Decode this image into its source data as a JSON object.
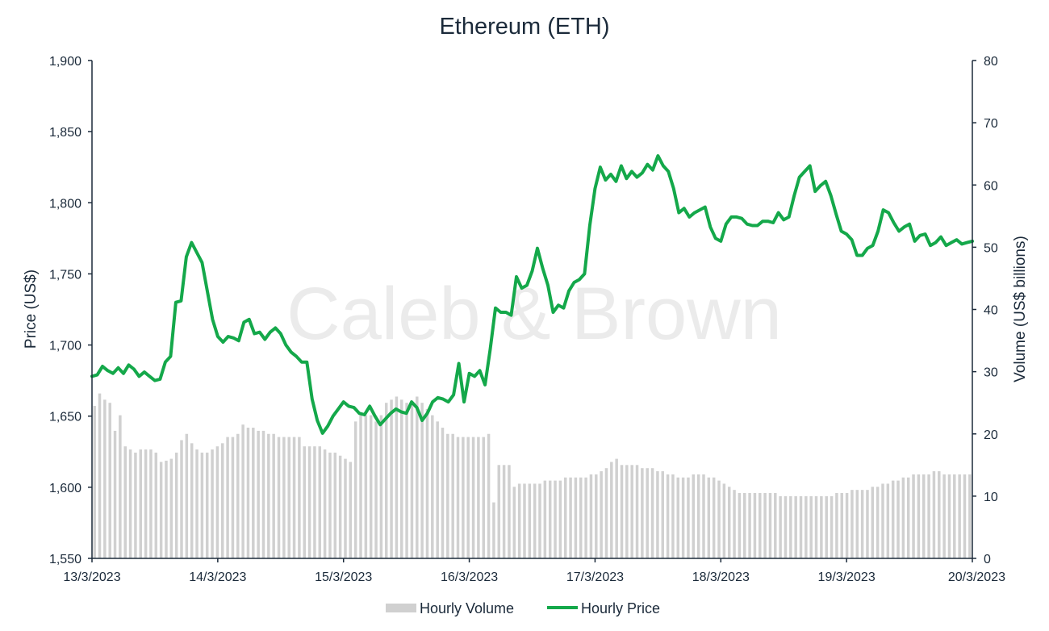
{
  "watermark": "Caleb & Brown",
  "colors": {
    "volume": "#d0d0d0",
    "price": "#14a84a",
    "axis": "#1b2a3a",
    "text": "#1b2a3a"
  },
  "chart_data": {
    "type": "bar+line",
    "title": "Ethereum (ETH)",
    "y_left_label": "Price (US$)",
    "y_right_label": "Volume (US$ billions)",
    "y_left_range": [
      1550,
      1900
    ],
    "y_left_ticks": [
      "1,550",
      "1,600",
      "1,650",
      "1,700",
      "1,750",
      "1,800",
      "1,850",
      "1,900"
    ],
    "y_right_range": [
      0,
      80
    ],
    "y_right_ticks": [
      "0",
      "10",
      "20",
      "30",
      "40",
      "50",
      "60",
      "70",
      "80"
    ],
    "x_ticks": [
      "13/3/2023",
      "14/3/2023",
      "15/3/2023",
      "16/3/2023",
      "17/3/2023",
      "18/3/2023",
      "19/3/2023",
      "20/3/2023"
    ],
    "x_range_hours": [
      0,
      168
    ],
    "legend_position": "bottom",
    "grid": false,
    "series": [
      {
        "name": "Hourly Volume",
        "type": "bar",
        "axis": "right",
        "values": [
          24.5,
          26.5,
          25.5,
          25.0,
          20.5,
          23.0,
          18.0,
          17.5,
          17.0,
          17.5,
          17.5,
          17.5,
          17.0,
          15.5,
          15.7,
          16.0,
          17.0,
          19.0,
          20.0,
          18.5,
          17.5,
          17.0,
          17.0,
          17.5,
          18.0,
          18.5,
          19.5,
          19.5,
          20.0,
          21.5,
          21.0,
          21.0,
          20.5,
          20.5,
          20.0,
          20.0,
          19.5,
          19.5,
          19.5,
          19.5,
          19.5,
          18.0,
          18.0,
          18.0,
          18.0,
          17.5,
          17.0,
          17.0,
          16.5,
          16.0,
          15.5,
          22.0,
          23.0,
          23.0,
          23.0,
          22.0,
          23.0,
          25.0,
          25.5,
          26.0,
          25.5,
          25.0,
          25.0,
          26.0,
          25.0,
          24.0,
          23.0,
          22.0,
          21.0,
          20.0,
          20.0,
          19.5,
          19.5,
          19.5,
          19.5,
          19.5,
          19.5,
          20.0,
          9.0,
          15.0,
          15.0,
          15.0,
          11.5,
          12.0,
          12.0,
          12.0,
          12.0,
          12.0,
          12.5,
          12.5,
          12.5,
          12.5,
          13.0,
          13.0,
          13.0,
          13.0,
          13.0,
          13.5,
          13.5,
          14.0,
          14.5,
          15.5,
          16.0,
          15.0,
          15.0,
          15.0,
          15.0,
          14.5,
          14.5,
          14.5,
          14.0,
          14.0,
          13.5,
          13.5,
          13.0,
          13.0,
          13.0,
          13.5,
          13.5,
          13.5,
          13.0,
          13.0,
          12.5,
          12.0,
          11.5,
          11.0,
          10.5,
          10.5,
          10.5,
          10.5,
          10.5,
          10.5,
          10.5,
          10.5,
          10.0,
          10.0,
          10.0,
          10.0,
          10.0,
          10.0,
          10.0,
          10.0,
          10.0,
          10.0,
          10.0,
          10.5,
          10.5,
          10.5,
          11.0,
          11.0,
          11.0,
          11.0,
          11.5,
          11.5,
          12.0,
          12.0,
          12.5,
          12.5,
          13.0,
          13.0,
          13.5,
          13.5,
          13.5,
          13.5,
          14.0,
          14.0,
          13.5,
          13.5,
          13.5,
          13.5,
          13.5,
          13.5
        ]
      },
      {
        "name": "Hourly Price",
        "type": "line",
        "axis": "left",
        "x": [
          0,
          1,
          2,
          3,
          4,
          5,
          6,
          7,
          8,
          9,
          10,
          11,
          12,
          13,
          14,
          15,
          16,
          17,
          18,
          19,
          20,
          21,
          22,
          23,
          24,
          25,
          26,
          27,
          28,
          29,
          30,
          31,
          32,
          33,
          34,
          35,
          36,
          37,
          38,
          39,
          40,
          41,
          42,
          43,
          44,
          45,
          46,
          47,
          48,
          49,
          50,
          51,
          52,
          53,
          54,
          55,
          56,
          57,
          58,
          59,
          60,
          61,
          62,
          63,
          64,
          65,
          66,
          67,
          68,
          69,
          70,
          71,
          72,
          73,
          74,
          75,
          76,
          77,
          78,
          79,
          80,
          81,
          82,
          83,
          84,
          85,
          86,
          87,
          88,
          89,
          90,
          91,
          92,
          93,
          94,
          95,
          96,
          97,
          98,
          99,
          100,
          101,
          102,
          103,
          104,
          105,
          106,
          107,
          108,
          109,
          110,
          111,
          112,
          113,
          114,
          115,
          116,
          117,
          118,
          119,
          120,
          121,
          122,
          123,
          124,
          125,
          126,
          127,
          128,
          129,
          130,
          131,
          132,
          133,
          134,
          135,
          136,
          137,
          138,
          139,
          140,
          141,
          142,
          143,
          144,
          145,
          146,
          147,
          148,
          149,
          150,
          151,
          152,
          153,
          154,
          155,
          156,
          157,
          158,
          159,
          160,
          161,
          162,
          163,
          164,
          165,
          166,
          167,
          168
        ],
        "values": [
          1678,
          1679,
          1685,
          1682,
          1680,
          1684,
          1680,
          1686,
          1683,
          1678,
          1681,
          1678,
          1675,
          1676,
          1688,
          1692,
          1730,
          1731,
          1762,
          1772,
          1765,
          1758,
          1738,
          1718,
          1706,
          1702,
          1706,
          1705,
          1703,
          1716,
          1718,
          1708,
          1709,
          1704,
          1709,
          1712,
          1708,
          1700,
          1695,
          1692,
          1688,
          1688,
          1662,
          1647,
          1638,
          1643,
          1650,
          1655,
          1660,
          1657,
          1656,
          1652,
          1651,
          1657,
          1650,
          1644,
          1648,
          1652,
          1655,
          1653,
          1652,
          1660,
          1656,
          1647,
          1652,
          1660,
          1663,
          1662,
          1660,
          1665,
          1687,
          1660,
          1680,
          1678,
          1682,
          1672,
          1697,
          1726,
          1723,
          1723,
          1721,
          1748,
          1740,
          1742,
          1752,
          1768,
          1754,
          1742,
          1723,
          1728,
          1726,
          1738,
          1744,
          1746,
          1750,
          1784,
          1810,
          1825,
          1816,
          1820,
          1815,
          1826,
          1817,
          1822,
          1818,
          1821,
          1827,
          1823,
          1833,
          1826,
          1822,
          1810,
          1793,
          1796,
          1790,
          1793,
          1795,
          1797,
          1783,
          1775,
          1773,
          1785,
          1790,
          1790,
          1789,
          1785,
          1784,
          1784,
          1787,
          1787,
          1786,
          1793,
          1788,
          1790,
          1805,
          1818,
          1822,
          1826,
          1808,
          1812,
          1815,
          1805,
          1792,
          1780,
          1778,
          1774,
          1763,
          1763,
          1768,
          1770,
          1780,
          1795,
          1793,
          1786,
          1780,
          1783,
          1785,
          1773,
          1777,
          1778,
          1770,
          1772,
          1776,
          1770,
          1772,
          1774,
          1771,
          1772,
          1773
        ]
      }
    ]
  }
}
